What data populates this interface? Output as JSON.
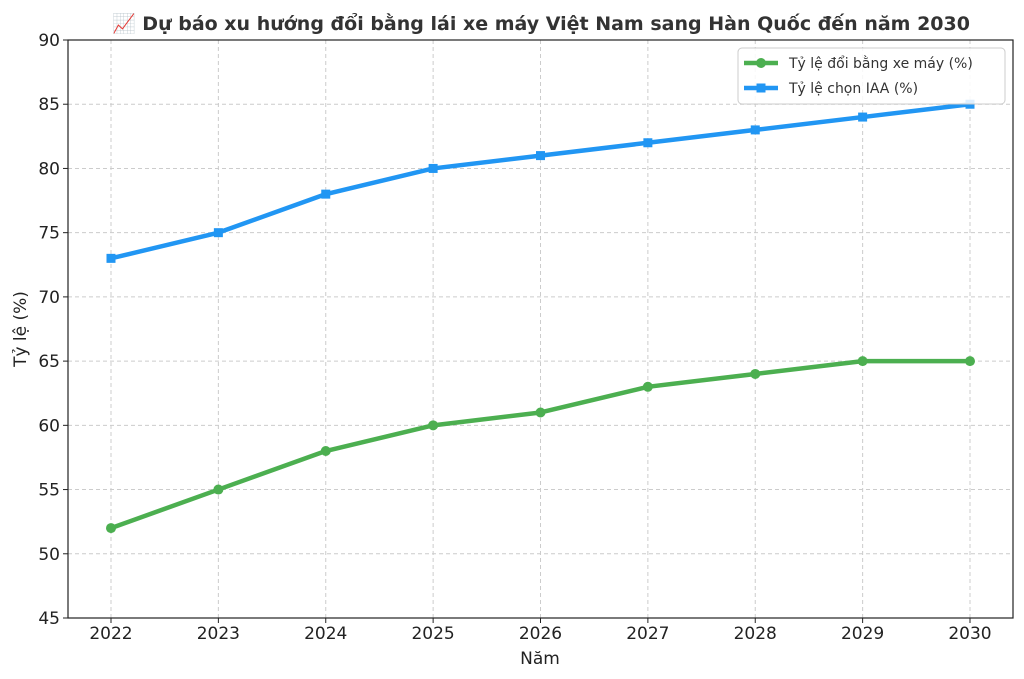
{
  "chart_data": {
    "type": "line",
    "title": "📈 Dự báo xu hướng đổi bằng lái xe máy Việt Nam sang Hàn Quốc đến năm 2030",
    "xlabel": "Năm",
    "ylabel": "Tỷ lệ (%)",
    "x": [
      2022,
      2023,
      2024,
      2025,
      2026,
      2027,
      2028,
      2029,
      2030
    ],
    "ylim": [
      45,
      90
    ],
    "yticks": [
      45,
      50,
      55,
      60,
      65,
      70,
      75,
      80,
      85,
      90
    ],
    "grid": true,
    "legend_position": "top-right",
    "series": [
      {
        "name": "Tỷ lệ đổi bằng xe máy (%)",
        "values": [
          52,
          55,
          58,
          60,
          61,
          63,
          64,
          65,
          65
        ],
        "color": "#4caf50",
        "marker": "circle"
      },
      {
        "name": "Tỷ lệ chọn IAA (%)",
        "values": [
          73,
          75,
          78,
          80,
          81,
          82,
          83,
          84,
          85
        ],
        "color": "#2196f3",
        "marker": "square"
      }
    ]
  }
}
